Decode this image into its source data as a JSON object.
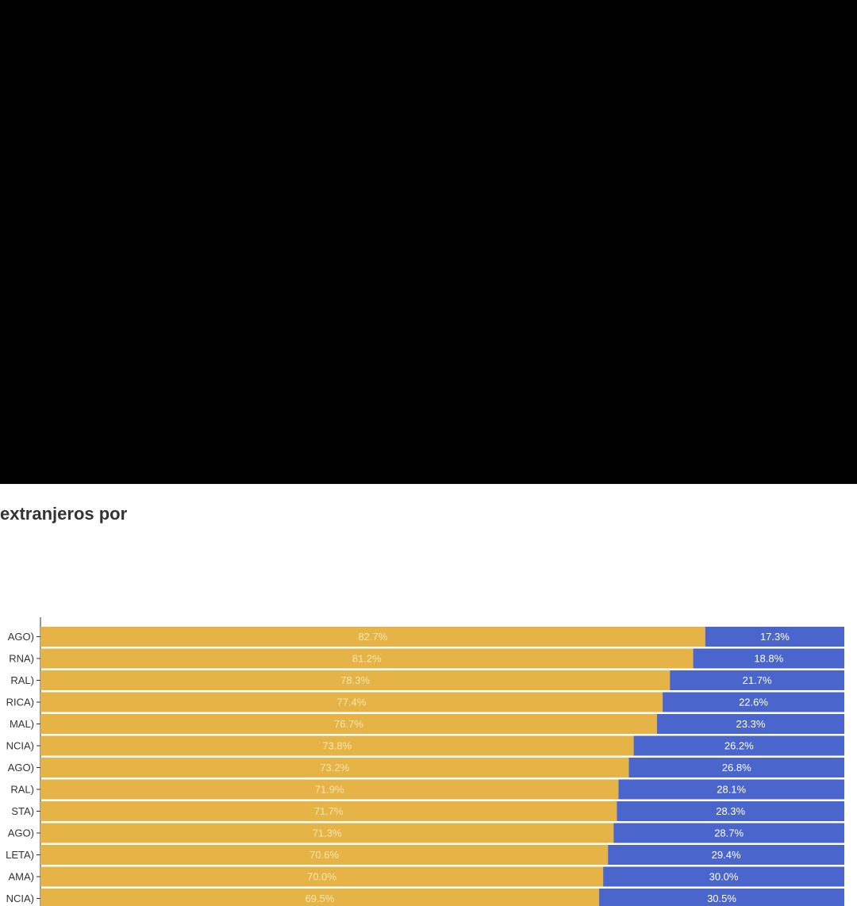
{
  "colors": {
    "background_top": "#000000",
    "panel": "#ffffff",
    "series_a": "#e5b346",
    "series_b": "#4a66cc",
    "label_on_a": "#fbe6b0",
    "label_on_b": "#ffffff",
    "text": "#333333"
  },
  "title": "extranjeros por",
  "chart_data": {
    "type": "bar",
    "orientation": "horizontal",
    "stacked": true,
    "normalized_percent": true,
    "categories": [
      "AGO)",
      "RNA)",
      "RAL)",
      "RICA)",
      "MAL)",
      "NCIA)",
      "AGO)",
      "RAL)",
      "STA)",
      "AGO)",
      "LETA)",
      "AMA)",
      "NCIA)"
    ],
    "series": [
      {
        "values": [
          82.7,
          81.2,
          78.3,
          77.4,
          76.7,
          73.8,
          73.2,
          71.9,
          71.7,
          71.3,
          70.6,
          70.0,
          69.5
        ]
      },
      {
        "values": [
          17.3,
          18.8,
          21.7,
          22.6,
          23.3,
          26.2,
          26.8,
          28.1,
          28.3,
          28.7,
          29.4,
          30.0,
          30.5
        ]
      }
    ],
    "xlim": [
      0,
      100
    ],
    "value_suffix": "%",
    "legend": "none",
    "grid": false
  }
}
